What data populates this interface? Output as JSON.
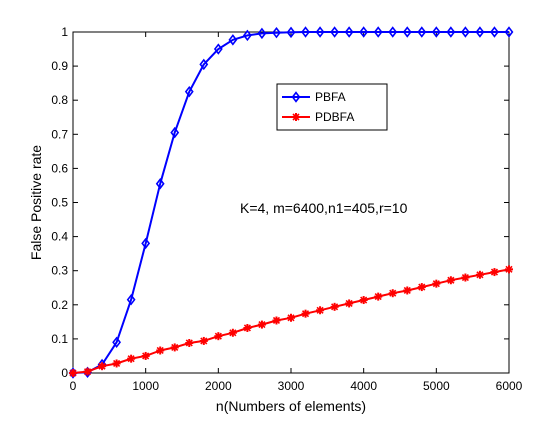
{
  "chart_data": {
    "type": "line",
    "title": "",
    "xlabel": "n(Numbers of elements)",
    "ylabel": "False Positive rate",
    "xlim": [
      0,
      6000
    ],
    "ylim": [
      0,
      1
    ],
    "xticks": [
      0,
      1000,
      2000,
      3000,
      4000,
      5000,
      6000
    ],
    "yticks": [
      0,
      0.1,
      0.2,
      0.3,
      0.4,
      0.5,
      0.6,
      0.7,
      0.8,
      0.9,
      1
    ],
    "xtick_labels": [
      "0",
      "1000",
      "2000",
      "3000",
      "4000",
      "5000",
      "6000"
    ],
    "ytick_labels": [
      "0",
      "0.1",
      "0.2",
      "0.3",
      "0.4",
      "0.5",
      "0.6",
      "0.7",
      "0.8",
      "0.9",
      "1"
    ],
    "grid": false,
    "legend_position": "upper-middle-right",
    "annotation": "K=4, m=6400,n1=405,r=10",
    "x": [
      0,
      200,
      400,
      600,
      800,
      1000,
      1200,
      1400,
      1600,
      1800,
      2000,
      2200,
      2400,
      2600,
      2800,
      3000,
      3200,
      3400,
      3600,
      3800,
      4000,
      4200,
      4400,
      4600,
      4800,
      5000,
      5200,
      5400,
      5600,
      5800,
      6000
    ],
    "series": [
      {
        "name": "PBFA",
        "color": "#0000ff",
        "marker": "diamond-icon",
        "values": [
          0,
          0.002,
          0.025,
          0.09,
          0.215,
          0.38,
          0.555,
          0.705,
          0.825,
          0.905,
          0.95,
          0.977,
          0.99,
          0.996,
          0.998,
          0.999,
          1,
          1,
          1,
          1,
          1,
          1,
          1,
          1,
          1,
          1,
          1,
          1,
          1,
          1,
          1
        ]
      },
      {
        "name": "PDBFA",
        "color": "#ff0000",
        "marker": "star-icon",
        "values": [
          0,
          0.004,
          0.02,
          0.028,
          0.042,
          0.05,
          0.066,
          0.075,
          0.088,
          0.094,
          0.108,
          0.118,
          0.132,
          0.142,
          0.154,
          0.162,
          0.174,
          0.184,
          0.194,
          0.204,
          0.214,
          0.224,
          0.234,
          0.242,
          0.252,
          0.262,
          0.272,
          0.28,
          0.288,
          0.296,
          0.304
        ]
      }
    ]
  }
}
